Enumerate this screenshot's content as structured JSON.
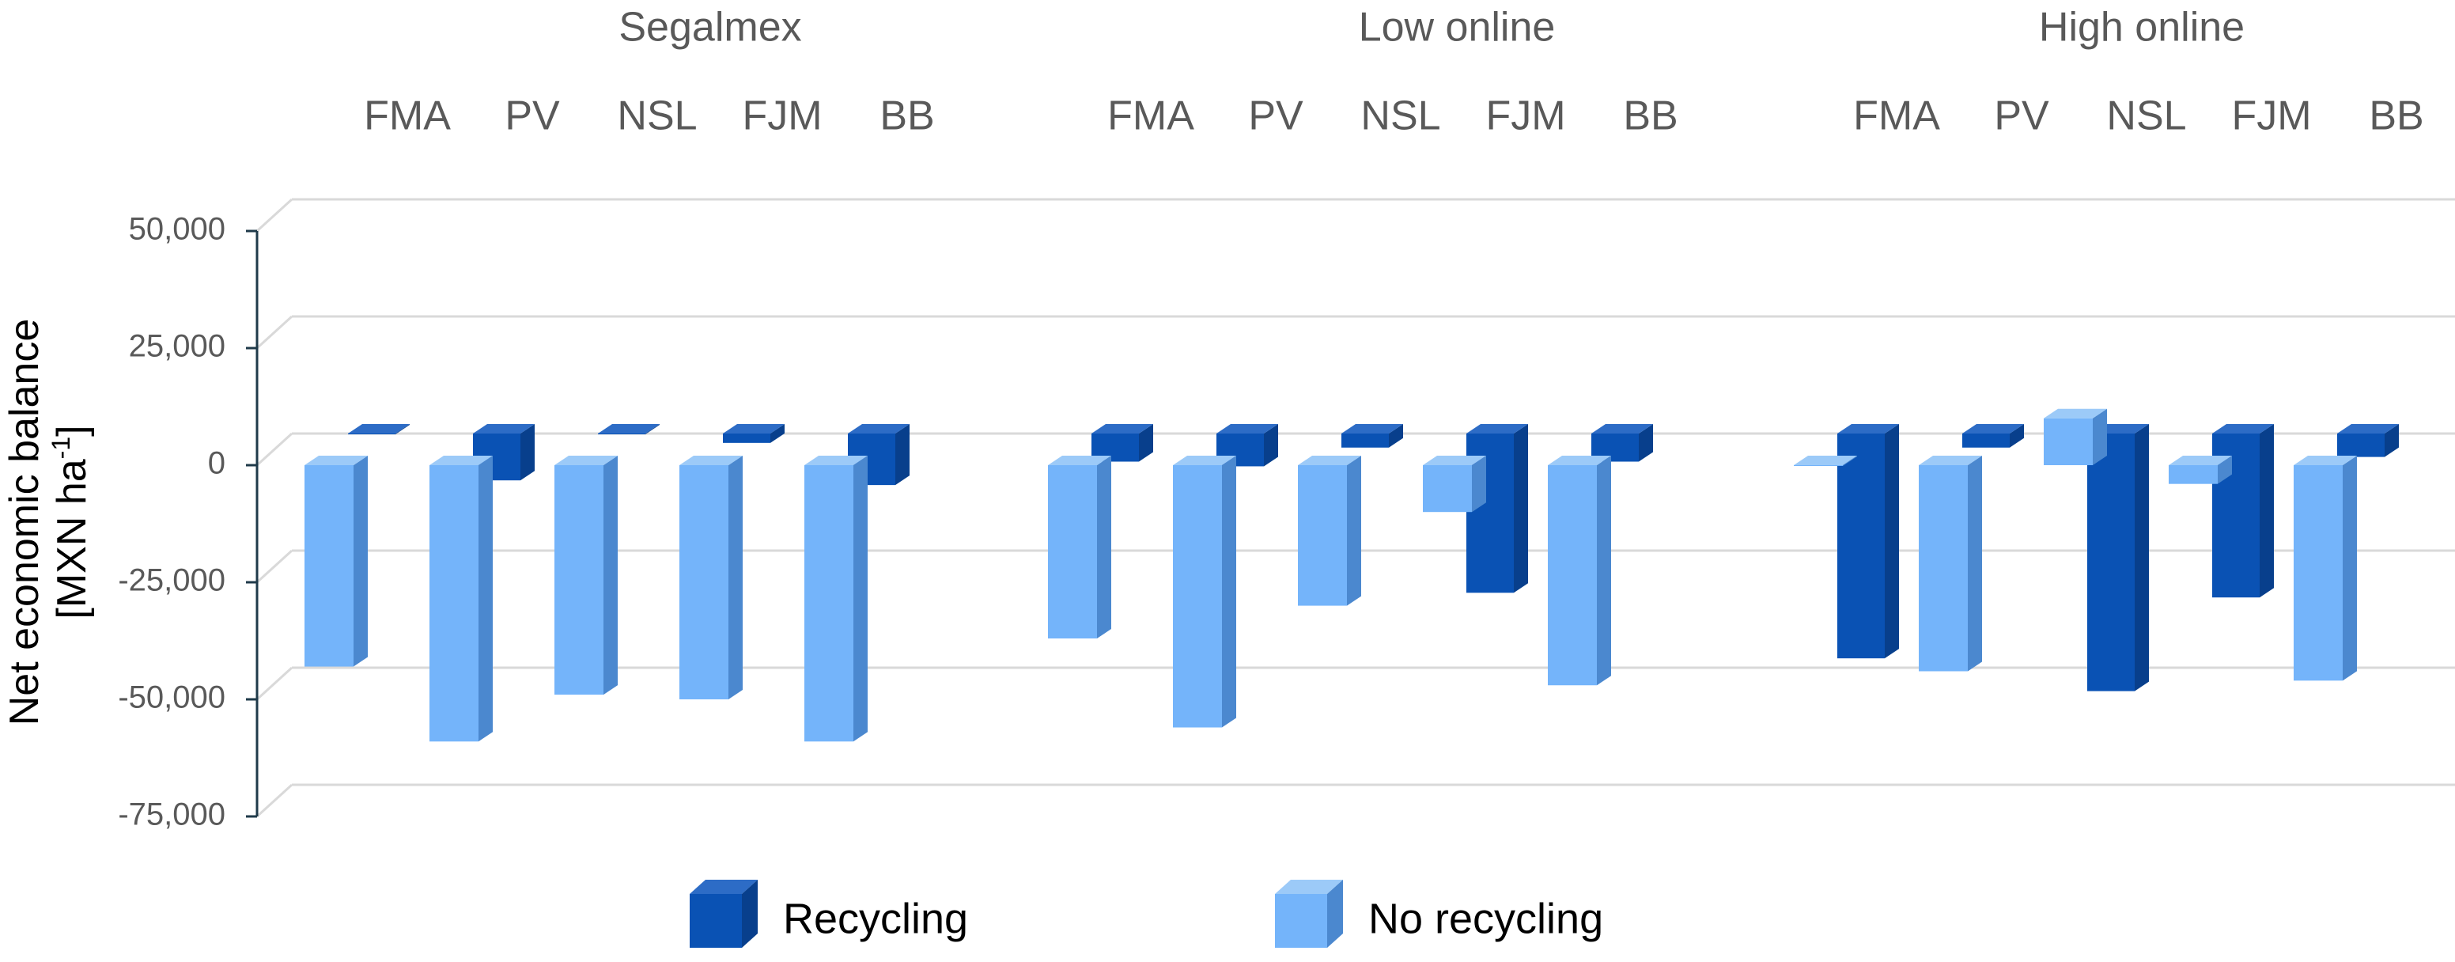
{
  "chart_data": {
    "type": "bar",
    "projection": "3d",
    "groups": [
      "Segalmex",
      "Low online",
      "High online"
    ],
    "categories": [
      "FMA",
      "PV",
      "NSL",
      "FJM",
      "BB"
    ],
    "ylabel": "Net economic balance",
    "ylabel_unit_base": "[MXN ha",
    "ylabel_unit_sup": "-1",
    "ylabel_unit_end": "]",
    "ylim": [
      -75000,
      50000
    ],
    "yticks": [
      50000,
      25000,
      0,
      -25000,
      -50000,
      -75000
    ],
    "ytick_labels": [
      "50,000",
      "25,000",
      "0",
      "-25,000",
      "-50,000",
      "-75,000"
    ],
    "grid": true,
    "legend_position": "bottom",
    "series": [
      {
        "name": "Recycling",
        "color": "#0a52b4",
        "values": [
          [
            0,
            -10000,
            0,
            -2000,
            -11000
          ],
          [
            -6000,
            -7000,
            -3000,
            -34000,
            -6000
          ],
          [
            -48000,
            -3000,
            -55000,
            -35000,
            -5000
          ]
        ]
      },
      {
        "name": "No recycling",
        "color": "#74b4fa",
        "values": [
          [
            -43000,
            -59000,
            -49000,
            -50000,
            -59000
          ],
          [
            -37000,
            -56000,
            -30000,
            -10000,
            -47000
          ],
          [
            0,
            -44000,
            10000,
            -4000,
            -46000
          ]
        ]
      }
    ]
  }
}
